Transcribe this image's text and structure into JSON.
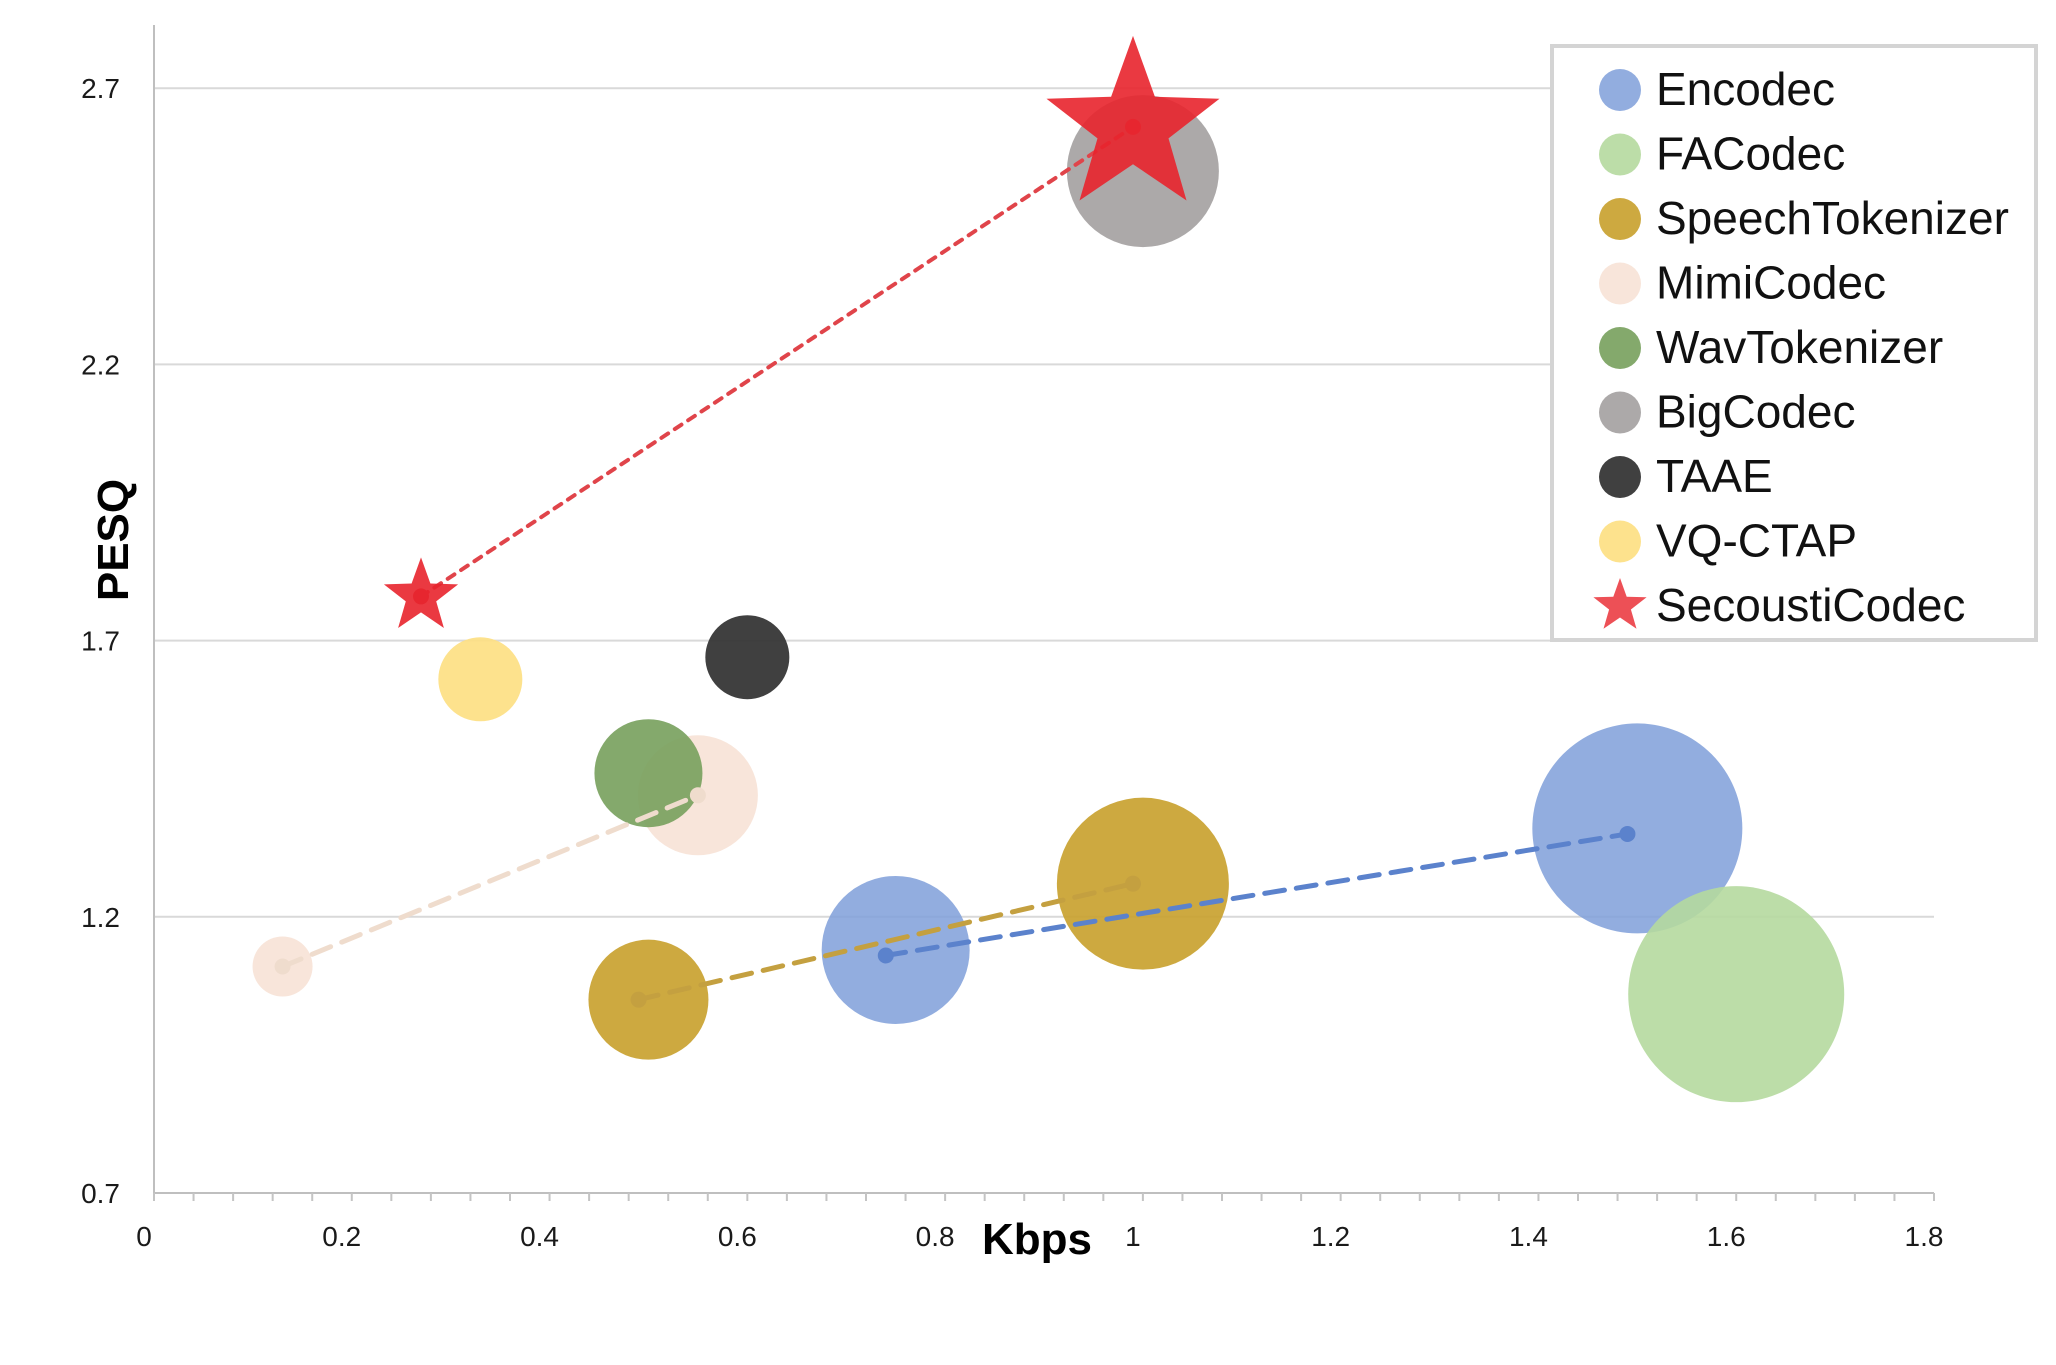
{
  "chart_data": {
    "type": "bubble",
    "xlabel": "Kbps",
    "ylabel": "PESQ",
    "xlim": [
      0,
      1.8
    ],
    "ylim": [
      0.7,
      2.8
    ],
    "xticks": [
      "0",
      "0.2",
      "0.4",
      "0.6",
      "0.8",
      "1",
      "1.2",
      "1.4",
      "1.6",
      "1.8"
    ],
    "yticks": [
      "0.7",
      "1.2",
      "1.7",
      "2.2",
      "2.7"
    ],
    "grid": "horizontal",
    "legend_position": "top-right",
    "series": [
      {
        "name": "Encodec",
        "color": "#7f9fd9",
        "marker": "circle",
        "opacity": 0.85,
        "points": [
          {
            "x": 0.75,
            "y": 1.14,
            "size": 74
          },
          {
            "x": 1.5,
            "y": 1.36,
            "size": 105
          }
        ]
      },
      {
        "name": "FACodec",
        "color": "#b5d99f",
        "marker": "circle",
        "opacity": 0.9,
        "points": [
          {
            "x": 1.6,
            "y": 1.06,
            "size": 108
          }
        ]
      },
      {
        "name": "SpeechTokenizer",
        "color": "#c9a230",
        "marker": "circle",
        "opacity": 0.92,
        "points": [
          {
            "x": 0.5,
            "y": 1.05,
            "size": 60
          },
          {
            "x": 1.0,
            "y": 1.26,
            "size": 86
          }
        ]
      },
      {
        "name": "MimiCodec",
        "color": "#f7e1d3",
        "marker": "circle",
        "opacity": 0.85,
        "points": [
          {
            "x": 0.13,
            "y": 1.11,
            "size": 30
          },
          {
            "x": 0.55,
            "y": 1.42,
            "size": 60
          }
        ]
      },
      {
        "name": "WavTokenizer",
        "color": "#77a05c",
        "marker": "circle",
        "opacity": 0.9,
        "points": [
          {
            "x": 0.5,
            "y": 1.46,
            "size": 54
          }
        ]
      },
      {
        "name": "BigCodec",
        "color": "#a8a4a4",
        "marker": "circle",
        "opacity": 0.95,
        "points": [
          {
            "x": 1.0,
            "y": 2.55,
            "size": 76
          }
        ]
      },
      {
        "name": "TAAE",
        "color": "#363636",
        "marker": "circle",
        "opacity": 0.95,
        "points": [
          {
            "x": 0.6,
            "y": 1.67,
            "size": 42
          }
        ]
      },
      {
        "name": "VQ-CTAP",
        "color": "#fddf83",
        "marker": "circle",
        "opacity": 0.92,
        "points": [
          {
            "x": 0.33,
            "y": 1.63,
            "size": 42
          }
        ]
      },
      {
        "name": "SecoustiCodec",
        "color": "#e8242c",
        "marker": "star",
        "opacity": 0.9,
        "points": [
          {
            "x": 0.27,
            "y": 1.78,
            "size": 30
          },
          {
            "x": 0.99,
            "y": 2.63,
            "size": 70
          }
        ]
      }
    ],
    "trend_lines": [
      {
        "series": "Encodec",
        "color": "#5b82cc",
        "style": "dashed",
        "points": [
          [
            0.74,
            1.13
          ],
          [
            1.49,
            1.35
          ]
        ]
      },
      {
        "series": "SpeechTokenizer",
        "color": "#c4a040",
        "style": "dashed",
        "points": [
          [
            0.49,
            1.05
          ],
          [
            0.99,
            1.26
          ]
        ]
      },
      {
        "series": "MimiCodec",
        "color": "#efdccd",
        "style": "dashed",
        "points": [
          [
            0.13,
            1.11
          ],
          [
            0.55,
            1.42
          ]
        ]
      },
      {
        "series": "SecoustiCodec",
        "color": "#e0444a",
        "style": "dotted",
        "points": [
          [
            0.27,
            1.78
          ],
          [
            0.99,
            2.63
          ]
        ]
      }
    ]
  }
}
